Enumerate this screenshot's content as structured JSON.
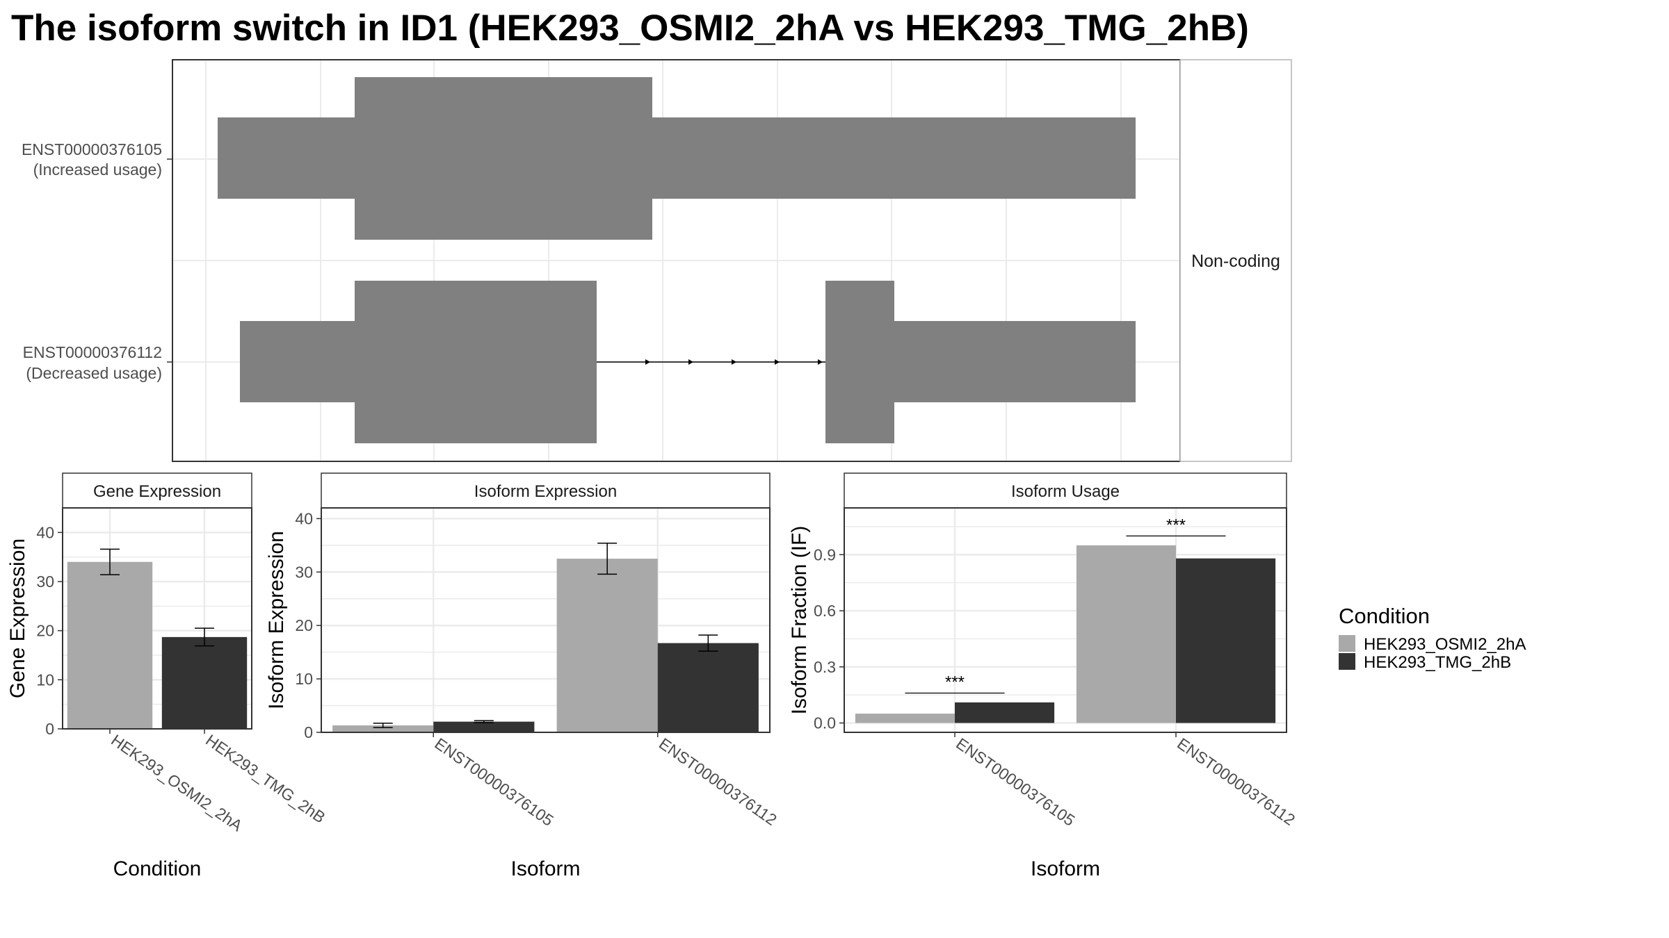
{
  "title": "The isoform switch in ID1 (HEK293_OSMI2_2hA vs HEK293_TMG_2hB)",
  "colors": {
    "cond1": "#a9a9a9",
    "cond2": "#333333",
    "exon": "#808080",
    "grid": "#ebebeb",
    "panel_border": "#333333"
  },
  "chart_data": [
    {
      "type": "gene-structure",
      "facet_label": "Non-coding",
      "isoforms": [
        {
          "id": "ENST00000376105",
          "label_line1": "ENST00000376105",
          "label_line2": "(Increased usage)"
        },
        {
          "id": "ENST00000376112",
          "label_line1": "ENST00000376112",
          "label_line2": "(Decreased usage)"
        }
      ]
    },
    {
      "type": "bar",
      "strip": "Gene Expression",
      "xlabel": "Condition",
      "ylabel": "Gene Expression",
      "ylim": [
        0,
        45
      ],
      "yticks": [
        0,
        10,
        20,
        30,
        40
      ],
      "categories": [
        "HEK293_OSMI2_2hA",
        "HEK293_TMG_2hB"
      ],
      "values": [
        34.0,
        18.7
      ],
      "errors": [
        2.6,
        1.8
      ]
    },
    {
      "type": "bar",
      "strip": "Isoform Expression",
      "xlabel": "Isoform",
      "ylabel": "Isoform Expression",
      "ylim": [
        0,
        42
      ],
      "yticks": [
        0,
        10,
        20,
        30,
        40
      ],
      "categories": [
        "ENST00000376105",
        "ENST00000376112"
      ],
      "series": [
        {
          "name": "HEK293_OSMI2_2hA",
          "values": [
            1.3,
            32.5
          ],
          "errors": [
            0.4,
            2.9
          ]
        },
        {
          "name": "HEK293_TMG_2hB",
          "values": [
            2.0,
            16.7
          ],
          "errors": [
            0.2,
            1.5
          ]
        }
      ]
    },
    {
      "type": "bar",
      "strip": "Isoform Usage",
      "xlabel": "Isoform",
      "ylabel": "Isoform Fraction (IF)",
      "ylim": [
        -0.05,
        1.15
      ],
      "yticks": [
        "0.0",
        "0.3",
        "0.6",
        "0.9"
      ],
      "categories": [
        "ENST00000376105",
        "ENST00000376112"
      ],
      "series": [
        {
          "name": "HEK293_OSMI2_2hA",
          "values": [
            0.05,
            0.95
          ]
        },
        {
          "name": "HEK293_TMG_2hB",
          "values": [
            0.11,
            0.88
          ]
        }
      ],
      "significance": [
        "***",
        "***"
      ]
    }
  ],
  "legend": {
    "title": "Condition",
    "items": [
      "HEK293_OSMI2_2hA",
      "HEK293_TMG_2hB"
    ]
  }
}
